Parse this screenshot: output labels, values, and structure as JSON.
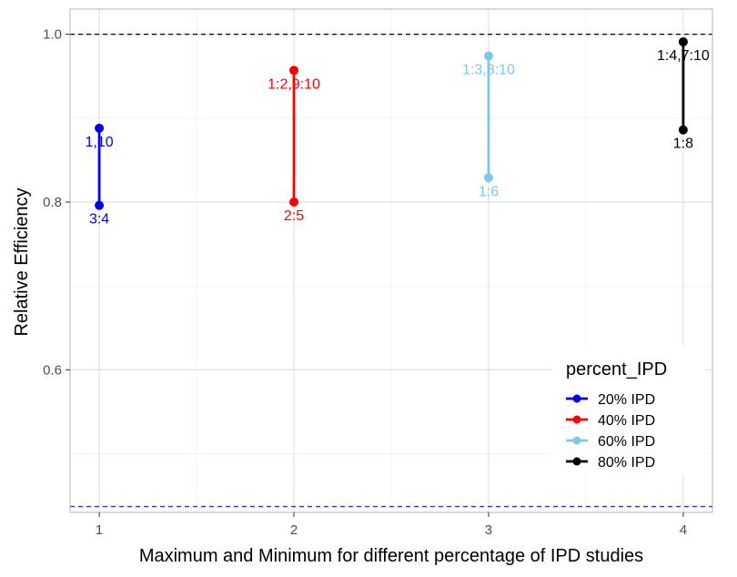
{
  "chart_data": {
    "type": "line",
    "xlabel": "Maximum and Minimum for different percentage of IPD studies",
    "ylabel": "Relative Efficiency",
    "xlim": [
      0.85,
      4.15
    ],
    "ylim": [
      0.43,
      1.03
    ],
    "x_ticks": [
      1,
      2,
      3,
      4
    ],
    "y_ticks": [
      0.6,
      0.8,
      1.0
    ],
    "y_tick_labels": [
      "0.6",
      "0.8",
      "1.0"
    ],
    "grid": true,
    "reference_lines": [
      {
        "y": 1.0,
        "color": "#000000",
        "style": "dashed"
      },
      {
        "y": 0.437,
        "color": "#3333cc",
        "style": "dashed"
      }
    ],
    "legend": {
      "title": "percent_IPD",
      "position": "bottom-right"
    },
    "series": [
      {
        "name": "20% IPD",
        "color": "#0000ee",
        "x": 1,
        "max": 0.888,
        "min": 0.796,
        "max_label": "1,10",
        "min_label": "3:4"
      },
      {
        "name": "40% IPD",
        "color": "#ff0000",
        "x": 2,
        "max": 0.957,
        "min": 0.8,
        "max_label": "1:2,9:10",
        "min_label": "2:5"
      },
      {
        "name": "60% IPD",
        "color": "#7ec8e8",
        "x": 3,
        "max": 0.974,
        "min": 0.829,
        "max_label": "1:3,8:10",
        "min_label": "1:6"
      },
      {
        "name": "80% IPD",
        "color": "#000000",
        "x": 4,
        "max": 0.991,
        "min": 0.886,
        "max_label": "1:4,7:10",
        "min_label": "1:8"
      }
    ]
  }
}
